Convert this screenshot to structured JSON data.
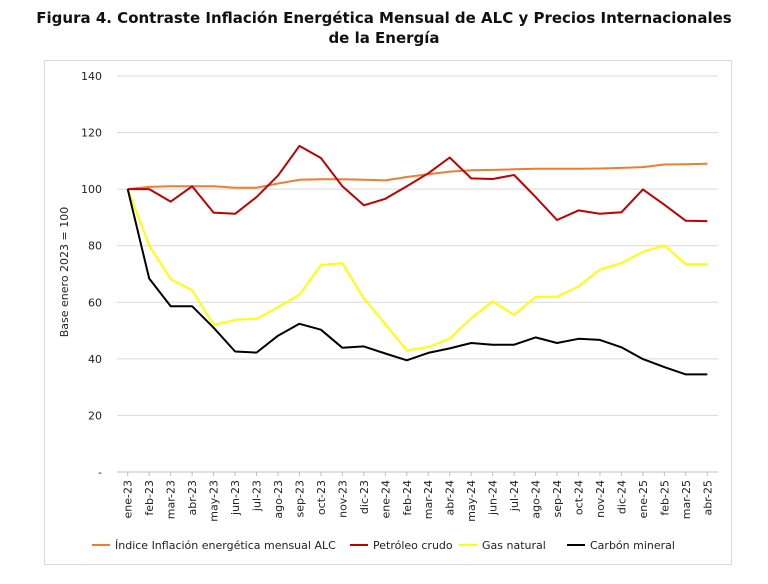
{
  "figure": {
    "title_line1": "Figura 4. Contraste Inflación Energética Mensual de ALC y Precios Internacionales",
    "title_line2": "de la Energía"
  },
  "chart_data": {
    "type": "line",
    "title": "Figura 4. Contraste Inflación Energética Mensual de ALC y Precios Internacionales de la Energía",
    "xlabel": "",
    "ylabel": "Base enero 2023 = 100",
    "ylim": [
      0,
      140
    ],
    "yticks": [
      0,
      20,
      40,
      60,
      80,
      100,
      120,
      140
    ],
    "ytick_labels": [
      "-",
      "20",
      "40",
      "60",
      "80",
      "100",
      "120",
      "140"
    ],
    "grid": "horizontal",
    "legend_position": "bottom",
    "categories": [
      "ene-23",
      "feb-23",
      "mar-23",
      "abr-23",
      "may-23",
      "jun-23",
      "jul-23",
      "ago-23",
      "sep-23",
      "oct-23",
      "nov-23",
      "dic-23",
      "ene-24",
      "feb-24",
      "mar-24",
      "abr-24",
      "may-24",
      "jun-24",
      "jul-24",
      "ago-24",
      "sep-24",
      "oct-24",
      "nov-24",
      "dic-24",
      "ene-25",
      "feb-25",
      "mar-25",
      "abr-25"
    ],
    "series": [
      {
        "name": "Índice Inflación energética mensual ALC",
        "color": "#ed7d31",
        "values": [
          100,
          100.8,
          101,
          101,
          101,
          100.5,
          100.5,
          102,
          103.3,
          103.5,
          103.5,
          103.3,
          103.1,
          104.3,
          105.3,
          106.2,
          106.7,
          106.8,
          107,
          107.2,
          107.2,
          107.2,
          107.3,
          107.5,
          107.8,
          108.7,
          108.8,
          109
        ]
      },
      {
        "name": "Petróleo crudo",
        "color": "#c00000",
        "values": [
          100,
          100,
          95.6,
          101,
          91.7,
          91.3,
          97.2,
          104.8,
          115.3,
          111,
          101,
          94.3,
          96.6,
          101,
          105.6,
          111.2,
          103.8,
          103.6,
          105,
          97.2,
          89.1,
          92.5,
          91.3,
          91.8,
          99.9,
          94.5,
          88.8,
          88.7
        ]
      },
      {
        "name": "Gas natural",
        "color": "#ffff00",
        "values": [
          100,
          80,
          68.2,
          64.3,
          52,
          53.8,
          54.2,
          58.3,
          62.7,
          73.2,
          73.8,
          61.4,
          52.2,
          43,
          44.2,
          47.2,
          54.4,
          60.3,
          55.6,
          61.9,
          62,
          65.6,
          71.6,
          73.9,
          77.9,
          80.1,
          73.5,
          73.5
        ]
      },
      {
        "name": "Carbón mineral",
        "color": "#000000",
        "values": [
          100,
          68.4,
          58.6,
          58.6,
          51,
          42.6,
          42.2,
          48.2,
          52.4,
          50.3,
          43.9,
          44.4,
          41.9,
          39.5,
          42.1,
          43.7,
          45.6,
          45,
          45,
          47.6,
          45.6,
          47.1,
          46.7,
          44.1,
          39.9,
          37.1,
          34.5,
          34.5
        ]
      }
    ]
  }
}
